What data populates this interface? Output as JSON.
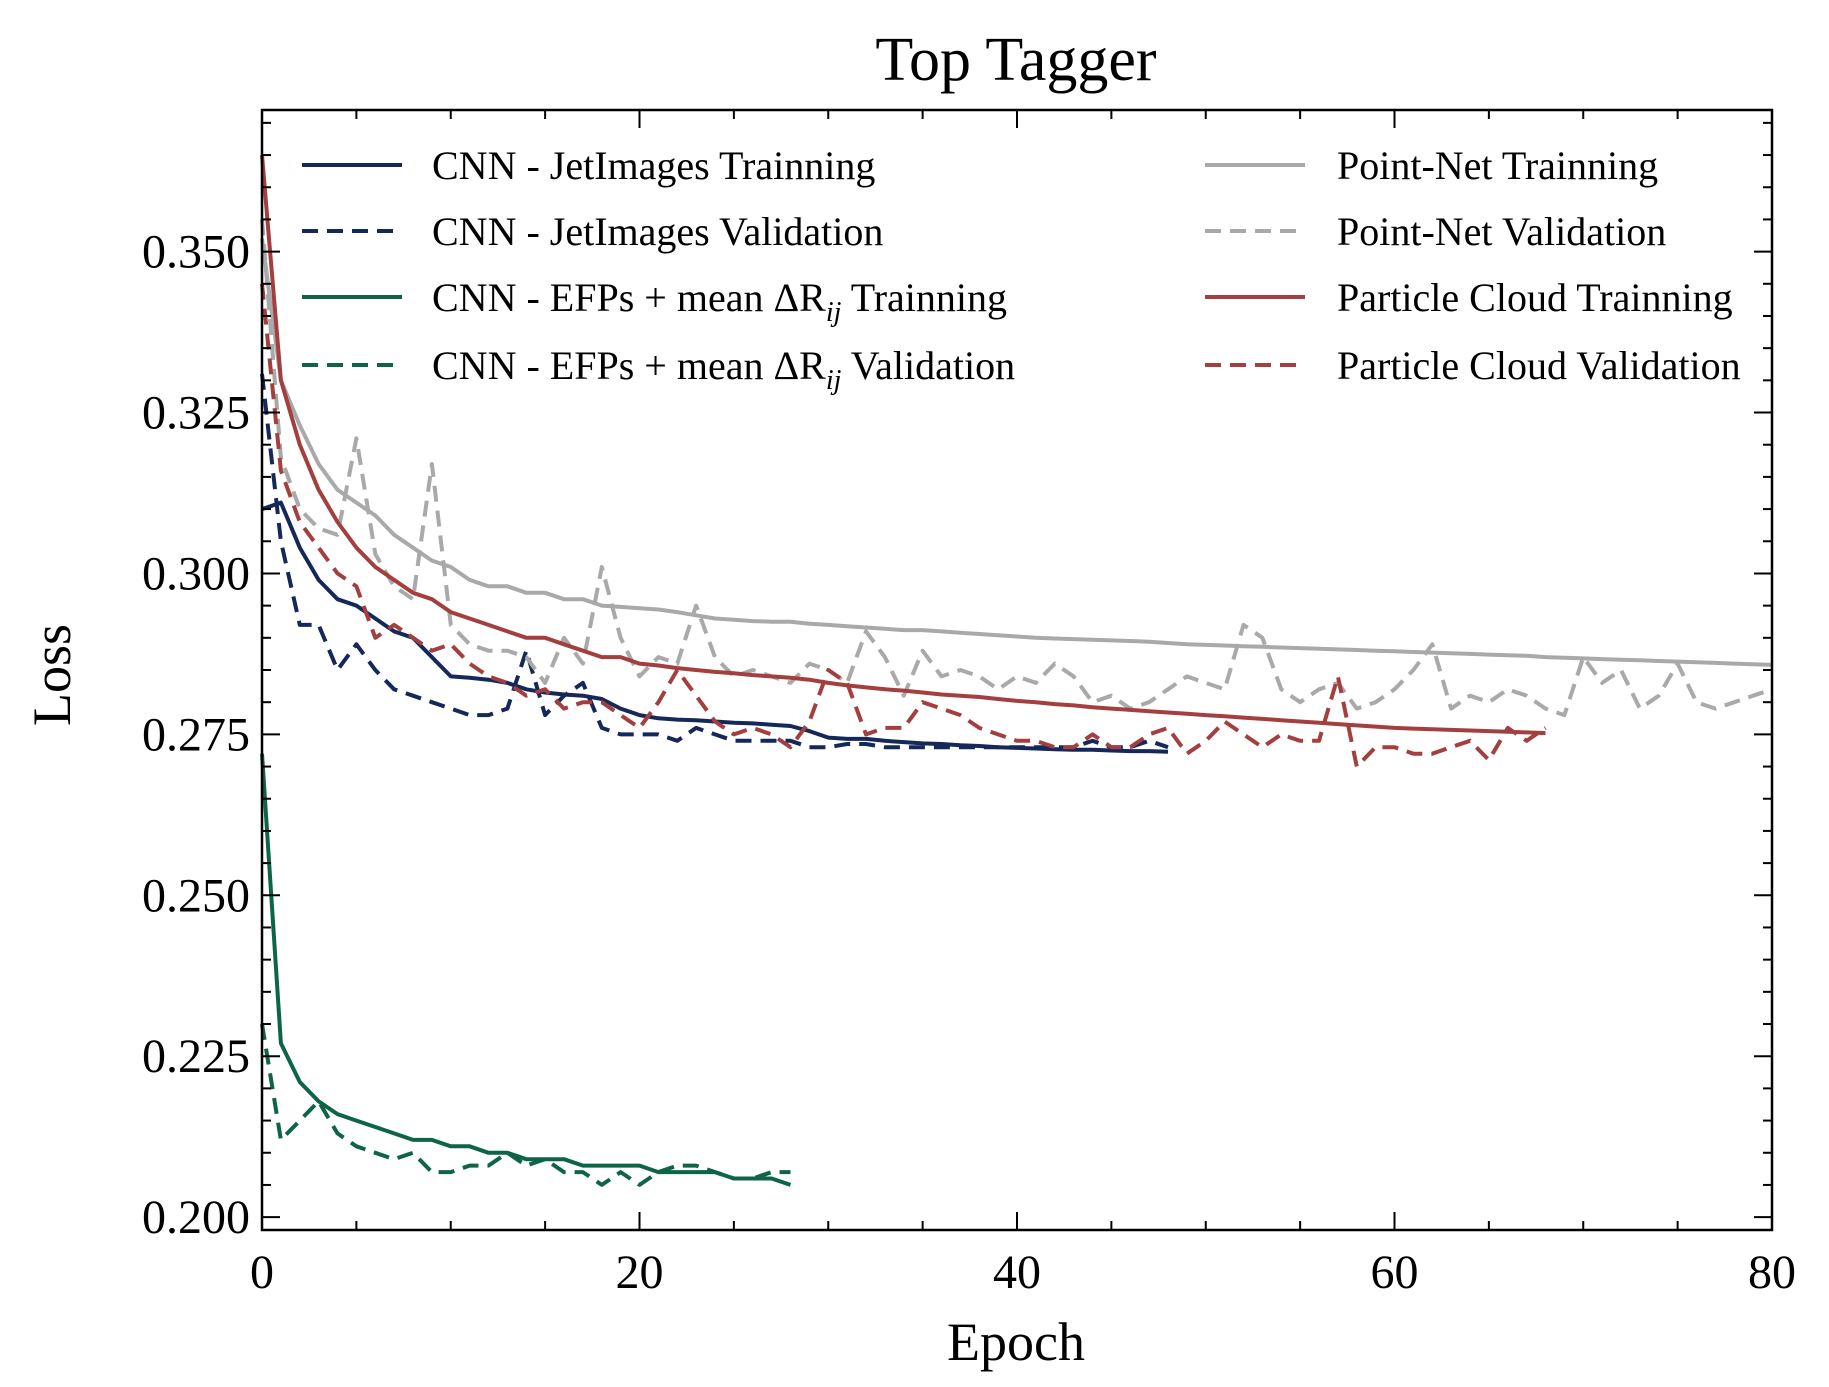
{
  "chart_data": {
    "type": "line",
    "title": "Top Tagger",
    "xlabel": "Epoch",
    "ylabel": "Loss",
    "xlim": [
      0,
      80
    ],
    "ylim": [
      0.198,
      0.372
    ],
    "xticks": [
      0,
      20,
      40,
      60,
      80
    ],
    "xtick_labels": [
      "0",
      "20",
      "40",
      "60",
      "80"
    ],
    "yticks": [
      0.2,
      0.225,
      0.25,
      0.275,
      0.3,
      0.325,
      0.35
    ],
    "ytick_labels": [
      "0.200",
      "0.225",
      "0.250",
      "0.275",
      "0.300",
      "0.325",
      "0.350"
    ],
    "grid": false,
    "legend_position": "top, two columns",
    "legend_columns": [
      [
        "cnn-jet-train",
        "cnn-jet-val",
        "cnn-efp-train",
        "cnn-efp-val"
      ],
      [
        "pointnet-train",
        "pointnet-val",
        "pc-train",
        "pc-val"
      ]
    ],
    "series": [
      {
        "id": "cnn-jet-train",
        "name": "CNN - JetImages Trainning",
        "color": "#14285a",
        "dash": "solid",
        "x": [
          0,
          1,
          2,
          3,
          4,
          5,
          6,
          7,
          8,
          9,
          10,
          11,
          12,
          13,
          14,
          15,
          16,
          17,
          18,
          19,
          20,
          21,
          22,
          23,
          24,
          25,
          26,
          27,
          28,
          29,
          30,
          31,
          32,
          33,
          34,
          35,
          36,
          37,
          38,
          39,
          40,
          41,
          42,
          43,
          44,
          45,
          46,
          47,
          48
        ],
        "y": [
          0.31,
          0.311,
          0.304,
          0.299,
          0.296,
          0.295,
          0.293,
          0.291,
          0.29,
          0.287,
          0.284,
          0.2838,
          0.2835,
          0.283,
          0.282,
          0.2815,
          0.2812,
          0.281,
          0.2805,
          0.279,
          0.278,
          0.2775,
          0.2773,
          0.2772,
          0.277,
          0.2768,
          0.2767,
          0.2765,
          0.2763,
          0.2755,
          0.2745,
          0.2743,
          0.2743,
          0.274,
          0.2738,
          0.2736,
          0.2735,
          0.2733,
          0.2732,
          0.273,
          0.2729,
          0.2728,
          0.2727,
          0.2726,
          0.2726,
          0.2725,
          0.2724,
          0.2724,
          0.2723
        ]
      },
      {
        "id": "cnn-jet-val",
        "name": "CNN - JetImages Validation",
        "color": "#14285a",
        "dash": "dashed",
        "x": [
          0,
          1,
          2,
          3,
          4,
          5,
          6,
          7,
          8,
          9,
          10,
          11,
          12,
          13,
          14,
          15,
          16,
          17,
          18,
          19,
          20,
          21,
          22,
          23,
          24,
          25,
          26,
          27,
          28,
          29,
          30,
          31,
          32,
          33,
          34,
          35,
          36,
          37,
          38,
          39,
          40,
          41,
          42,
          43,
          44,
          45,
          46,
          47,
          48
        ],
        "y": [
          0.331,
          0.305,
          0.292,
          0.292,
          0.285,
          0.289,
          0.285,
          0.282,
          0.281,
          0.28,
          0.279,
          0.278,
          0.278,
          0.279,
          0.288,
          0.278,
          0.281,
          0.283,
          0.276,
          0.275,
          0.275,
          0.275,
          0.274,
          0.276,
          0.275,
          0.274,
          0.274,
          0.274,
          0.274,
          0.273,
          0.273,
          0.2735,
          0.2735,
          0.273,
          0.273,
          0.273,
          0.273,
          0.273,
          0.273,
          0.273,
          0.273,
          0.273,
          0.273,
          0.273,
          0.274,
          0.273,
          0.273,
          0.274,
          0.273
        ]
      },
      {
        "id": "cnn-efp-train",
        "name": "CNN - EFPs + mean ΔR",
        "name_sub": "ij",
        "name_suffix": " Trainning",
        "color": "#0e6545",
        "dash": "solid",
        "x": [
          0,
          1,
          2,
          3,
          4,
          5,
          6,
          7,
          8,
          9,
          10,
          11,
          12,
          13,
          14,
          15,
          16,
          17,
          18,
          19,
          20,
          21,
          22,
          23,
          24,
          25,
          26,
          27,
          28
        ],
        "y": [
          0.272,
          0.227,
          0.221,
          0.218,
          0.216,
          0.215,
          0.214,
          0.213,
          0.212,
          0.212,
          0.211,
          0.211,
          0.21,
          0.21,
          0.209,
          0.209,
          0.209,
          0.208,
          0.208,
          0.208,
          0.208,
          0.207,
          0.207,
          0.207,
          0.207,
          0.206,
          0.206,
          0.206,
          0.205
        ]
      },
      {
        "id": "cnn-efp-val",
        "name": "CNN - EFPs + mean ΔR",
        "name_sub": "ij",
        "name_suffix": " Validation",
        "color": "#0e6545",
        "dash": "dashed",
        "x": [
          0,
          1,
          2,
          3,
          4,
          5,
          6,
          7,
          8,
          9,
          10,
          11,
          12,
          13,
          14,
          15,
          16,
          17,
          18,
          19,
          20,
          21,
          22,
          23,
          24,
          25,
          26,
          27,
          28
        ],
        "y": [
          0.23,
          0.212,
          0.215,
          0.218,
          0.213,
          0.211,
          0.21,
          0.209,
          0.21,
          0.207,
          0.207,
          0.208,
          0.208,
          0.21,
          0.208,
          0.209,
          0.207,
          0.207,
          0.205,
          0.207,
          0.205,
          0.207,
          0.208,
          0.208,
          0.207,
          0.206,
          0.206,
          0.207,
          0.207
        ]
      },
      {
        "id": "pointnet-train",
        "name": "Point-Net Trainning",
        "color": "#a9a9a9",
        "dash": "solid",
        "x": [
          0,
          1,
          2,
          3,
          4,
          5,
          6,
          7,
          8,
          9,
          10,
          11,
          12,
          13,
          14,
          15,
          16,
          17,
          18,
          19,
          20,
          21,
          22,
          23,
          24,
          25,
          26,
          27,
          28,
          29,
          30,
          31,
          32,
          33,
          34,
          35,
          36,
          37,
          38,
          39,
          40,
          41,
          42,
          43,
          44,
          45,
          46,
          47,
          48,
          49,
          50,
          51,
          52,
          53,
          54,
          55,
          56,
          57,
          58,
          59,
          60,
          61,
          62,
          63,
          64,
          65,
          66,
          67,
          68,
          69,
          70,
          71,
          72,
          73,
          74,
          75,
          76,
          77,
          78,
          79,
          80
        ],
        "y": [
          0.352,
          0.33,
          0.323,
          0.317,
          0.313,
          0.311,
          0.309,
          0.306,
          0.304,
          0.302,
          0.301,
          0.299,
          0.298,
          0.298,
          0.297,
          0.297,
          0.296,
          0.296,
          0.295,
          0.2948,
          0.2946,
          0.2944,
          0.294,
          0.2935,
          0.293,
          0.2928,
          0.2926,
          0.2925,
          0.2925,
          0.2922,
          0.292,
          0.2918,
          0.2916,
          0.2914,
          0.2912,
          0.2912,
          0.291,
          0.2908,
          0.2906,
          0.2904,
          0.2902,
          0.29,
          0.2899,
          0.2898,
          0.2897,
          0.2896,
          0.2895,
          0.2894,
          0.2892,
          0.289,
          0.2889,
          0.2888,
          0.2887,
          0.2886,
          0.2885,
          0.2884,
          0.2883,
          0.2882,
          0.2881,
          0.288,
          0.2879,
          0.2878,
          0.2877,
          0.2876,
          0.2875,
          0.2874,
          0.2873,
          0.2872,
          0.287,
          0.2869,
          0.2868,
          0.2867,
          0.2866,
          0.2865,
          0.2864,
          0.2863,
          0.2862,
          0.2861,
          0.286,
          0.2859,
          0.2858
        ]
      },
      {
        "id": "pointnet-val",
        "name": "Point-Net Validation",
        "color": "#a9a9a9",
        "dash": "dashed",
        "x": [
          0,
          1,
          2,
          3,
          4,
          5,
          6,
          7,
          8,
          9,
          10,
          11,
          12,
          13,
          14,
          15,
          16,
          17,
          18,
          19,
          20,
          21,
          22,
          23,
          24,
          25,
          26,
          27,
          28,
          29,
          30,
          31,
          32,
          33,
          34,
          35,
          36,
          37,
          38,
          39,
          40,
          41,
          42,
          43,
          44,
          45,
          46,
          47,
          48,
          49,
          50,
          51,
          52,
          53,
          54,
          55,
          56,
          57,
          58,
          59,
          60,
          61,
          62,
          63,
          64,
          65,
          66,
          67,
          68,
          69,
          70,
          71,
          72,
          73,
          74,
          75,
          76,
          77,
          78,
          79,
          80
        ],
        "y": [
          0.355,
          0.318,
          0.31,
          0.307,
          0.306,
          0.321,
          0.303,
          0.298,
          0.296,
          0.317,
          0.292,
          0.289,
          0.288,
          0.288,
          0.287,
          0.283,
          0.29,
          0.286,
          0.301,
          0.29,
          0.284,
          0.287,
          0.286,
          0.295,
          0.287,
          0.284,
          0.285,
          0.284,
          0.283,
          0.286,
          0.285,
          0.283,
          0.291,
          0.287,
          0.281,
          0.288,
          0.284,
          0.285,
          0.284,
          0.282,
          0.284,
          0.283,
          0.286,
          0.284,
          0.28,
          0.281,
          0.279,
          0.28,
          0.282,
          0.284,
          0.283,
          0.282,
          0.292,
          0.29,
          0.282,
          0.28,
          0.282,
          0.283,
          0.279,
          0.28,
          0.282,
          0.285,
          0.289,
          0.279,
          0.281,
          0.28,
          0.282,
          0.281,
          0.279,
          0.278,
          0.287,
          0.283,
          0.285,
          0.279,
          0.281,
          0.286,
          0.28,
          0.279,
          0.28,
          0.281,
          0.282
        ]
      },
      {
        "id": "pc-train",
        "name": "Particle Cloud Trainning",
        "color": "#a33f3f",
        "dash": "solid",
        "x": [
          0,
          1,
          2,
          3,
          4,
          5,
          6,
          7,
          8,
          9,
          10,
          11,
          12,
          13,
          14,
          15,
          16,
          17,
          18,
          19,
          20,
          21,
          22,
          23,
          24,
          25,
          26,
          27,
          28,
          29,
          30,
          31,
          32,
          33,
          34,
          35,
          36,
          37,
          38,
          39,
          40,
          41,
          42,
          43,
          44,
          45,
          46,
          47,
          48,
          49,
          50,
          51,
          52,
          53,
          54,
          55,
          56,
          57,
          58,
          59,
          60,
          61,
          62,
          63,
          64,
          65,
          66,
          67,
          68
        ],
        "y": [
          0.365,
          0.33,
          0.32,
          0.313,
          0.308,
          0.304,
          0.301,
          0.299,
          0.297,
          0.296,
          0.294,
          0.293,
          0.292,
          0.291,
          0.29,
          0.29,
          0.289,
          0.288,
          0.287,
          0.287,
          0.286,
          0.2857,
          0.2853,
          0.285,
          0.2847,
          0.2845,
          0.2842,
          0.284,
          0.2838,
          0.2835,
          0.283,
          0.2826,
          0.2823,
          0.282,
          0.2818,
          0.2815,
          0.2812,
          0.281,
          0.2808,
          0.2805,
          0.2802,
          0.28,
          0.2797,
          0.2795,
          0.2792,
          0.279,
          0.2788,
          0.2786,
          0.2784,
          0.2782,
          0.278,
          0.2778,
          0.2776,
          0.2774,
          0.2772,
          0.277,
          0.2768,
          0.2766,
          0.2764,
          0.2762,
          0.276,
          0.2759,
          0.2758,
          0.2757,
          0.2756,
          0.2755,
          0.2754,
          0.2753,
          0.2752
        ]
      },
      {
        "id": "pc-val",
        "name": "Particle Cloud Validation",
        "color": "#a33f3f",
        "dash": "dashed",
        "x": [
          0,
          1,
          2,
          3,
          4,
          5,
          6,
          7,
          8,
          9,
          10,
          11,
          12,
          13,
          14,
          15,
          16,
          17,
          18,
          19,
          20,
          21,
          22,
          23,
          24,
          25,
          26,
          27,
          28,
          29,
          30,
          31,
          32,
          33,
          34,
          35,
          36,
          37,
          38,
          39,
          40,
          41,
          42,
          43,
          44,
          45,
          46,
          47,
          48,
          49,
          50,
          51,
          52,
          53,
          54,
          55,
          56,
          57,
          58,
          59,
          60,
          61,
          62,
          63,
          64,
          65,
          66,
          67,
          68
        ],
        "y": [
          0.345,
          0.316,
          0.308,
          0.304,
          0.3,
          0.298,
          0.29,
          0.292,
          0.29,
          0.288,
          0.289,
          0.286,
          0.284,
          0.283,
          0.281,
          0.282,
          0.279,
          0.28,
          0.28,
          0.278,
          0.276,
          0.28,
          0.285,
          0.281,
          0.277,
          0.275,
          0.276,
          0.275,
          0.273,
          0.277,
          0.285,
          0.283,
          0.275,
          0.276,
          0.276,
          0.28,
          0.279,
          0.278,
          0.276,
          0.275,
          0.274,
          0.274,
          0.273,
          0.273,
          0.275,
          0.273,
          0.273,
          0.275,
          0.276,
          0.272,
          0.274,
          0.277,
          0.275,
          0.273,
          0.275,
          0.274,
          0.274,
          0.284,
          0.27,
          0.273,
          0.273,
          0.272,
          0.272,
          0.273,
          0.274,
          0.271,
          0.276,
          0.274,
          0.276
        ]
      }
    ]
  }
}
